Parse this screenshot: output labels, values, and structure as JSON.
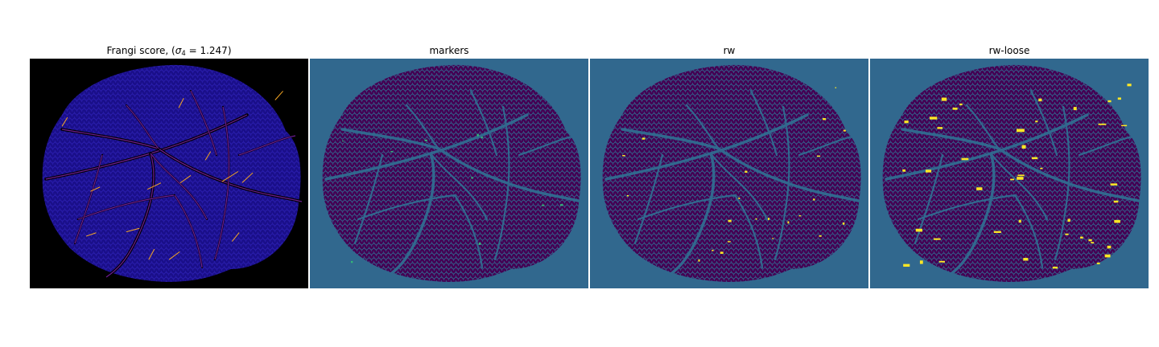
{
  "panels": [
    {
      "title_prefix": "Frangi score, (",
      "title_symbol": "σ",
      "title_subscript": "4",
      "title_suffix": " = 1.247)",
      "background": "#000000",
      "tissue_color": "#1a0f8a",
      "vessel_color": "#7b1fa2",
      "highlight_color": "#f5a623"
    },
    {
      "title": "markers",
      "background": "#31688e",
      "tissue_color": "#440154",
      "vessel_color": "#31688e",
      "highlight_color": "#35b779"
    },
    {
      "title": "rw",
      "background": "#31688e",
      "tissue_color": "#440154",
      "vessel_color": "#31688e",
      "highlight_color": "#fde725"
    },
    {
      "title": "rw-loose",
      "background": "#31688e",
      "tissue_color": "#440154",
      "vessel_color": "#31688e",
      "highlight_color": "#fde725"
    }
  ]
}
